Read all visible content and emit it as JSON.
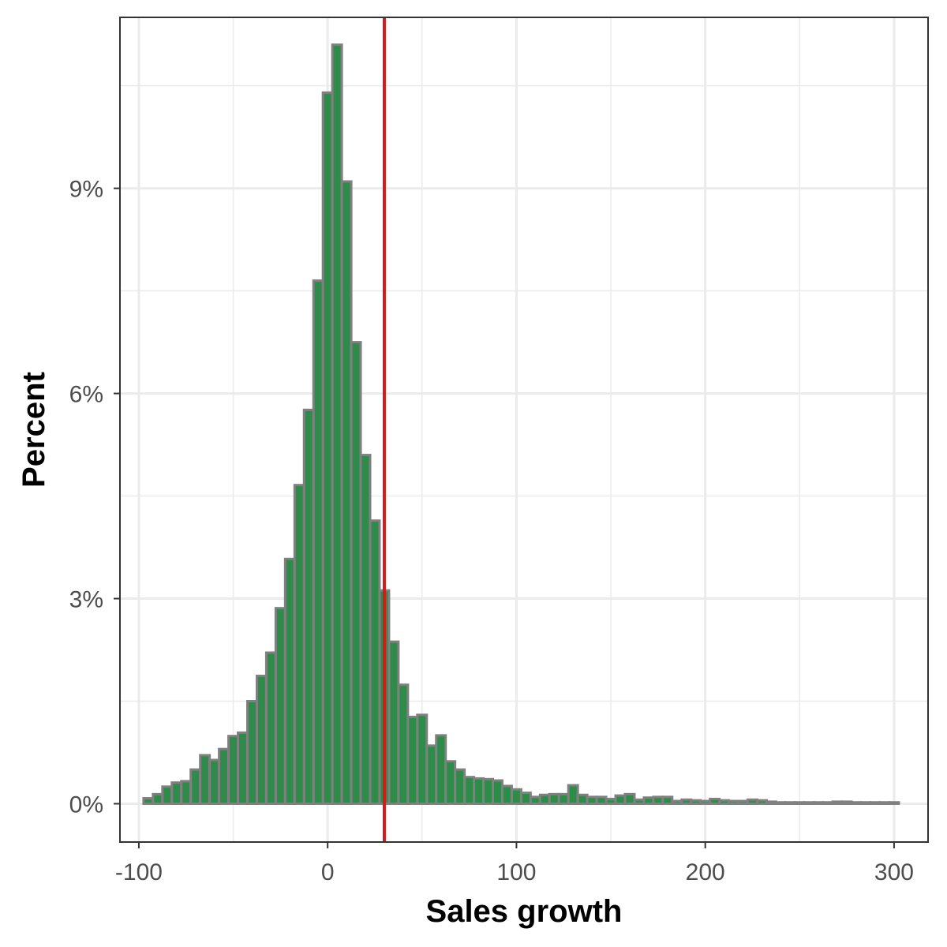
{
  "chart_data": {
    "type": "bar",
    "subtype": "histogram",
    "xlabel": "Sales growth",
    "ylabel": "Percent",
    "xlim": [
      -110,
      318
    ],
    "ylim": [
      -0.56,
      11.5
    ],
    "x_ticks": [
      -100,
      0,
      100,
      200,
      300
    ],
    "x_tick_labels": [
      "-100",
      "0",
      "100",
      "200",
      "300"
    ],
    "y_ticks": [
      0,
      3,
      6,
      9
    ],
    "y_tick_labels": [
      "0%",
      "3%",
      "6%",
      "9%"
    ],
    "grid": true,
    "legend": "none",
    "bin_width": 5,
    "bins_start": -97.5,
    "values": [
      0.08,
      0.14,
      0.25,
      0.31,
      0.33,
      0.5,
      0.71,
      0.64,
      0.8,
      0.99,
      1.04,
      1.5,
      1.87,
      2.21,
      2.86,
      3.58,
      4.66,
      5.76,
      7.65,
      10.4,
      11.1,
      9.1,
      6.75,
      5.1,
      4.14,
      3.12,
      2.37,
      1.74,
      1.27,
      1.3,
      0.85,
      1.0,
      0.62,
      0.5,
      0.39,
      0.37,
      0.36,
      0.34,
      0.26,
      0.21,
      0.16,
      0.1,
      0.13,
      0.14,
      0.14,
      0.27,
      0.13,
      0.1,
      0.1,
      0.07,
      0.12,
      0.14,
      0.06,
      0.09,
      0.1,
      0.1,
      0.04,
      0.06,
      0.05,
      0.04,
      0.07,
      0.05,
      0.04,
      0.04,
      0.06,
      0.05,
      0.03,
      0.02,
      0.02,
      0.02,
      0.02,
      0.02,
      0.02,
      0.03,
      0.03,
      0.02,
      0.02,
      0.02,
      0.02,
      0.02
    ],
    "reference_line": {
      "x": 30,
      "color": "#e41a1c"
    },
    "colors": {
      "bar_fill": "#2e8b4a",
      "bar_stroke": "#808080",
      "grid": "#ebebeb",
      "panel_border": "#333333",
      "reference_line": "#d7191c"
    }
  }
}
